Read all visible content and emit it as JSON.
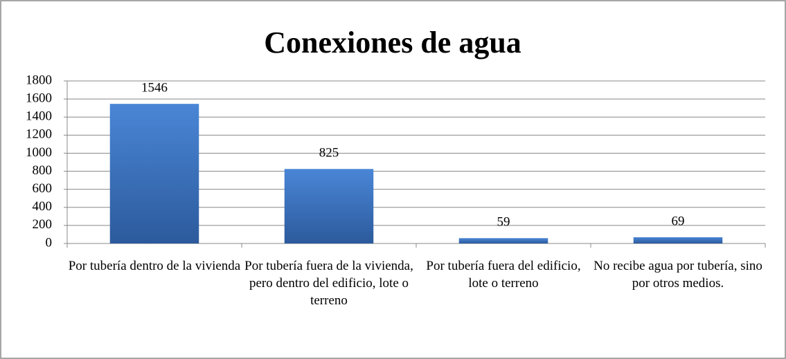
{
  "chart_data": {
    "type": "bar",
    "title": "Conexiones de agua",
    "categories": [
      "Por tubería dentro de la vivienda",
      "Por tubería fuera de la vivienda, pero dentro del edificio, lote o terreno",
      "Por tubería fuera del edificio, lote o terreno",
      "No recibe agua por tubería, sino por otros medios."
    ],
    "values": [
      1546,
      825,
      59,
      69
    ],
    "color": "#3a74c2",
    "ylim": [
      0,
      1800
    ],
    "yticks": [
      0,
      200,
      400,
      600,
      800,
      1000,
      1200,
      1400,
      1600,
      1800
    ],
    "grid": true
  }
}
